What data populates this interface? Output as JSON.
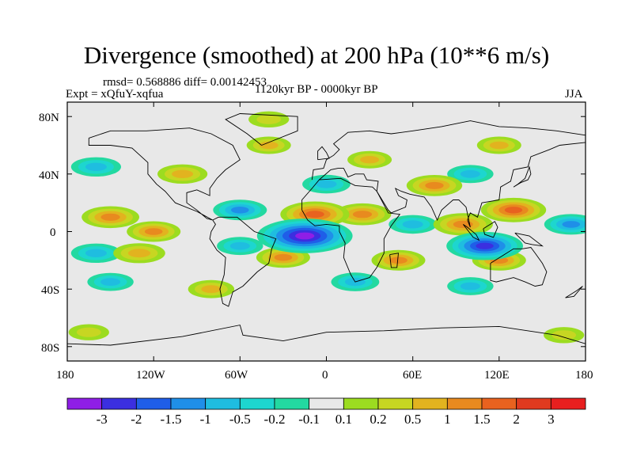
{
  "title": "Divergence (smoothed) at 200 hPa (10**6 m/s)",
  "stats": "rmsd= 0.568886 diff= 0.00142453",
  "experiment": "Expt = xQfuY-xqfua",
  "period": "1120kyr BP - 0000kyr BP",
  "season": "JJA",
  "lat_ticks": [
    "80N",
    "40N",
    "0",
    "40S",
    "80S"
  ],
  "lon_ticks": [
    "180",
    "120W",
    "60W",
    "0",
    "60E",
    "120E",
    "180"
  ],
  "colorbar": {
    "labels": [
      "-3",
      "-2",
      "-1.5",
      "-1",
      "-0.5",
      "-0.2",
      "-0.1",
      "0.1",
      "0.2",
      "0.5",
      "1",
      "1.5",
      "2",
      "3"
    ],
    "colors": [
      "#8f1ee6",
      "#3b2fe0",
      "#1f5ee8",
      "#1f8fe8",
      "#1fbde0",
      "#1dd6cf",
      "#23d9a1",
      "#e8e8e8",
      "#9cdc20",
      "#c7d622",
      "#e2b31f",
      "#e88a1f",
      "#e8621f",
      "#e03a1f",
      "#e81f1f"
    ]
  },
  "chart_data": {
    "type": "heatmap",
    "title": "Divergence (smoothed) at 200 hPa (10**6 m/s)",
    "season": "JJA",
    "experiment": "Expt = xQfuY-xqfua",
    "period": "1120kyr BP - 0000kyr BP",
    "rmsd": 0.568886,
    "diff": 0.00142453,
    "x_range": [
      -180,
      180
    ],
    "y_range": [
      -90,
      90
    ],
    "contour_levels": [
      -3,
      -2,
      -1.5,
      -1,
      -0.5,
      -0.2,
      -0.1,
      0.1,
      0.2,
      0.5,
      1,
      1.5,
      2,
      3
    ],
    "features": [
      {
        "lon": -15,
        "lat": -3,
        "value": -3.2
      },
      {
        "lon": 110,
        "lat": -10,
        "value": -2.2
      },
      {
        "lon": -8,
        "lat": 12,
        "value": 1.8
      },
      {
        "lon": 25,
        "lat": 12,
        "value": 1.2
      },
      {
        "lon": 95,
        "lat": 5,
        "value": 1.3
      },
      {
        "lon": 130,
        "lat": 15,
        "value": 1.6
      },
      {
        "lon": -150,
        "lat": 10,
        "value": 1.2
      },
      {
        "lon": -120,
        "lat": 0,
        "value": 1.0
      },
      {
        "lon": 75,
        "lat": 32,
        "value": 1.1
      },
      {
        "lon": -100,
        "lat": 40,
        "value": 0.8
      },
      {
        "lon": -30,
        "lat": -18,
        "value": 1.0
      },
      {
        "lon": 120,
        "lat": -20,
        "value": 1.0
      },
      {
        "lon": -130,
        "lat": -15,
        "value": 0.9
      },
      {
        "lon": 50,
        "lat": -20,
        "value": 1.0
      },
      {
        "lon": -160,
        "lat": 45,
        "value": -0.8
      },
      {
        "lon": -60,
        "lat": 15,
        "value": -1.0
      },
      {
        "lon": 0,
        "lat": 33,
        "value": -0.7
      },
      {
        "lon": 170,
        "lat": 5,
        "value": -1.0
      },
      {
        "lon": -160,
        "lat": -15,
        "value": -0.8
      },
      {
        "lon": 60,
        "lat": 5,
        "value": -0.7
      },
      {
        "lon": -60,
        "lat": -10,
        "value": -0.6
      },
      {
        "lon": 20,
        "lat": -35,
        "value": -0.7
      },
      {
        "lon": 100,
        "lat": -38,
        "value": -0.6
      },
      {
        "lon": -150,
        "lat": -35,
        "value": -0.6
      },
      {
        "lon": -80,
        "lat": -40,
        "value": 0.6
      },
      {
        "lon": 30,
        "lat": 50,
        "value": 0.5
      },
      {
        "lon": -40,
        "lat": 60,
        "value": 0.5
      },
      {
        "lon": 120,
        "lat": 60,
        "value": 0.5
      },
      {
        "lon": 100,
        "lat": 40,
        "value": -0.6
      },
      {
        "lon": -165,
        "lat": -70,
        "value": 0.3
      },
      {
        "lon": 165,
        "lat": -72,
        "value": 0.3
      },
      {
        "lon": -40,
        "lat": 78,
        "value": 0.3
      }
    ]
  }
}
